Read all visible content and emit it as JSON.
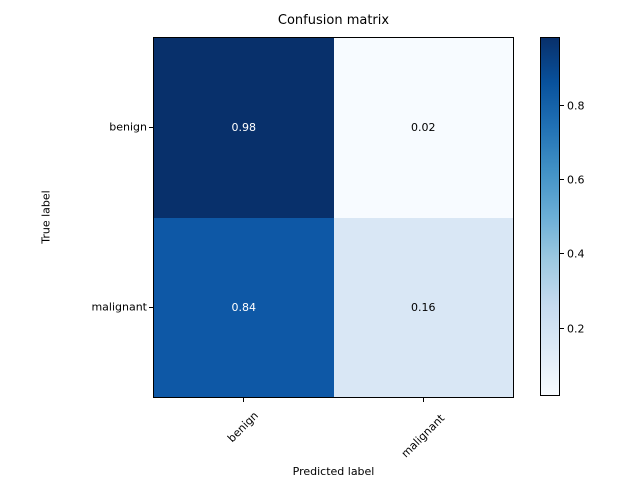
{
  "chart_data": {
    "type": "heatmap",
    "title": "Confusion matrix",
    "xlabel": "Predicted label",
    "ylabel": "True label",
    "x_categories": [
      "benign",
      "malignant"
    ],
    "y_categories": [
      "benign",
      "malignant"
    ],
    "values": [
      [
        0.98,
        0.02
      ],
      [
        0.84,
        0.16
      ]
    ],
    "cell_labels": [
      [
        "0.98",
        "0.02"
      ],
      [
        "0.84",
        "0.16"
      ]
    ],
    "cell_colors": [
      [
        "#08306b",
        "#f7fbff"
      ],
      [
        "#0e58a6",
        "#d9e7f5"
      ]
    ],
    "cell_text_colors": [
      [
        "#ffffff",
        "#000000"
      ],
      [
        "#ffffff",
        "#000000"
      ]
    ],
    "colormap": "Blues",
    "value_range": [
      0.02,
      0.98
    ],
    "grid": false,
    "colorbar": {
      "tick_labels": [
        "0.8",
        "0.6",
        "0.4",
        "0.2"
      ],
      "gradient_css": "linear-gradient(to bottom, #08306b 0%, #08519c 12.5%, #2171b5 25%, #4292c6 37.5%, #6baed6 50%, #9ecae1 62.5%, #c6dbef 75%, #deebf7 87.5%, #f7fbff 100%)"
    }
  }
}
